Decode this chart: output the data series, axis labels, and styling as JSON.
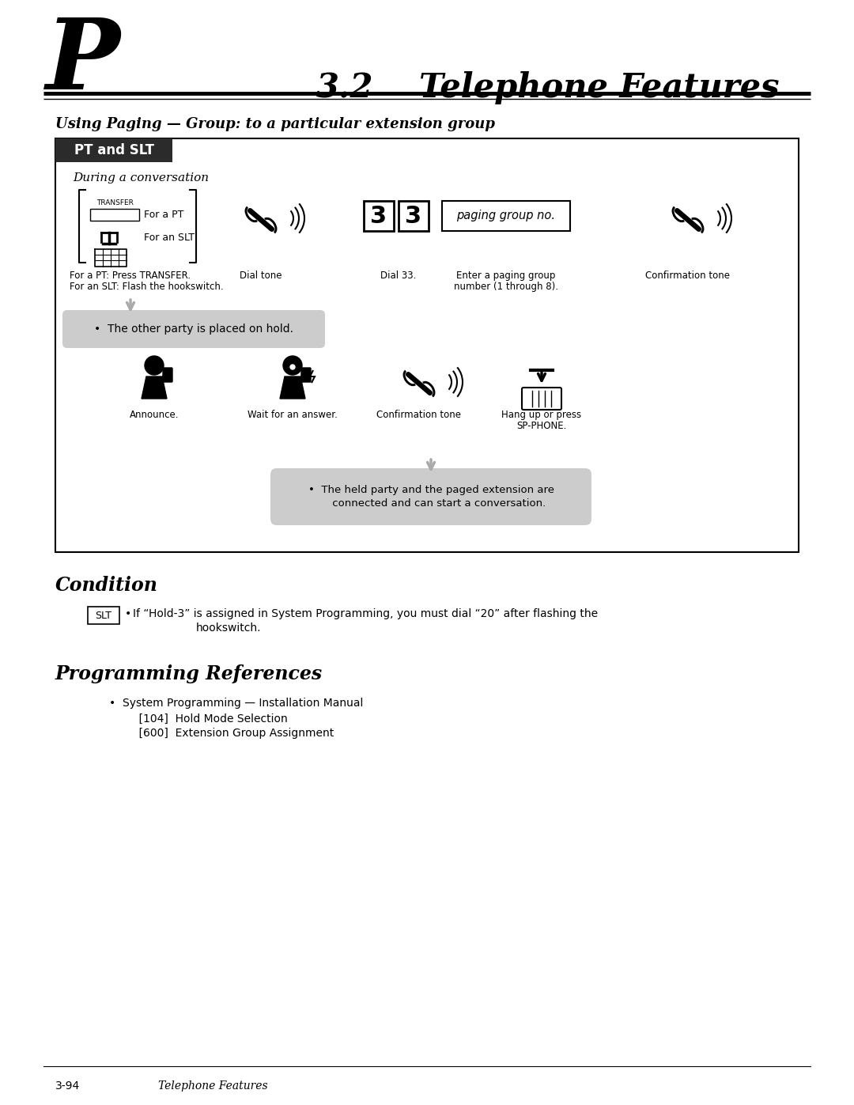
{
  "page_letter": "P",
  "section_number": "3.2",
  "section_title": "Telephone Features",
  "subtitle": "Using Paging — Group: to a particular extension group",
  "box_label": "PT and SLT",
  "during_text": "During a conversation",
  "transfer_text": "TRANSFER",
  "for_pt": "For a PT",
  "for_slt": "For an SLT",
  "step1_caption_line1": "For a PT: Press TRANSFER.",
  "step1_caption_line2": "For an SLT: Flash the hookswitch.",
  "step2_caption": "Dial tone",
  "step3_caption": "Dial 33.",
  "step4_box_text": "paging group no.",
  "step4_caption_line1": "Enter a paging group",
  "step4_caption_line2": "number (1 through 8).",
  "step5_caption": "Confirmation tone",
  "hold_note": "•  The other party is placed on hold.",
  "announce_caption": "Announce.",
  "wait_caption": "Wait for an answer.",
  "confirm_caption": "Confirmation tone",
  "hangup_caption_line1": "Hang up or press",
  "hangup_caption_line2": "SP-PHONE.",
  "final_note_line1": "•  The held party and the paged extension are",
  "final_note_line2": "     connected and can start a conversation.",
  "condition_title": "Condition",
  "slt_label": "SLT",
  "condition_bullet": "•",
  "condition_line1": "If “Hold-3” is assigned in System Programming, you must dial “20” after flashing the",
  "condition_line2": "hookswitch.",
  "prog_ref_title": "Programming References",
  "prog_ref_bullet": "•  System Programming — Installation Manual",
  "prog_ref_sub1": "    [104]  Hold Mode Selection",
  "prog_ref_sub2": "    [600]  Extension Group Assignment",
  "footer_page": "3-94",
  "footer_title": "Telephone Features",
  "bg_color": "#ffffff",
  "dark_tab_color": "#2b2b2b",
  "note_gray": "#cccccc",
  "arrow_gray": "#aaaaaa"
}
